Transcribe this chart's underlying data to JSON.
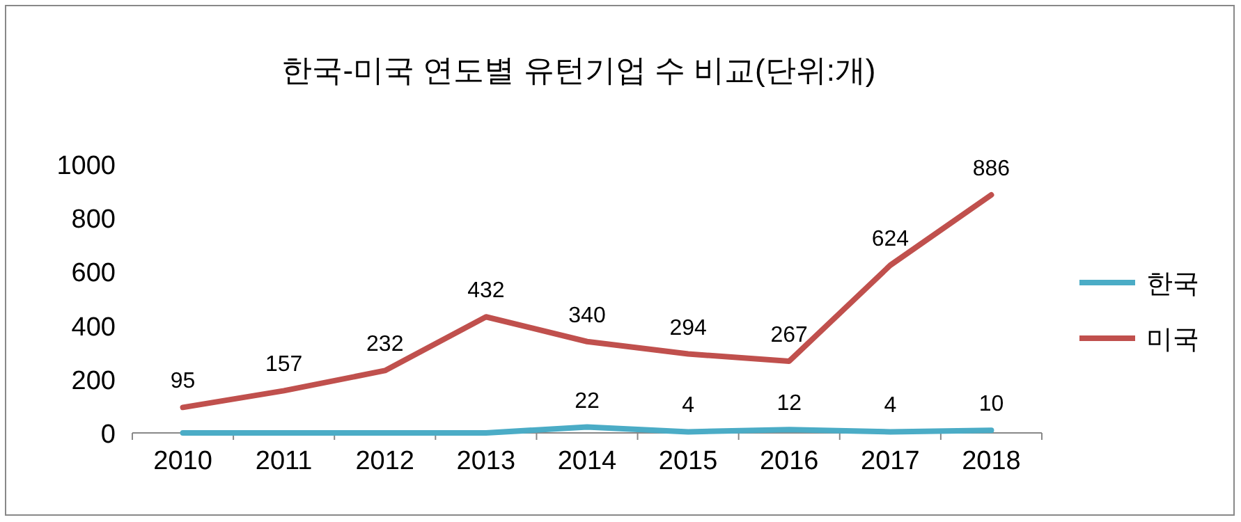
{
  "chart_data": {
    "type": "line",
    "title": "한국-미국 연도별 유턴기업 수 비교(단위:개)",
    "categories": [
      "2010",
      "2011",
      "2012",
      "2013",
      "2014",
      "2015",
      "2016",
      "2017",
      "2018"
    ],
    "series": [
      {
        "name": "한국",
        "color": "#4bacc6",
        "values": [
          0,
          0,
          0,
          0,
          22,
          4,
          12,
          4,
          10
        ],
        "value_labels": [
          null,
          null,
          null,
          null,
          "22",
          "4",
          "12",
          "4",
          "10"
        ]
      },
      {
        "name": "미국",
        "color": "#c0504d",
        "values": [
          95,
          157,
          232,
          432,
          340,
          294,
          267,
          624,
          886
        ],
        "value_labels": [
          "95",
          "157",
          "232",
          "432",
          "340",
          "294",
          "267",
          "624",
          "886"
        ]
      }
    ],
    "ylim": [
      0,
      1000
    ],
    "yticks": [
      0,
      200,
      400,
      600,
      800,
      1000
    ],
    "grid": false,
    "legend": "right",
    "marker": "none",
    "line_style": "solid"
  }
}
